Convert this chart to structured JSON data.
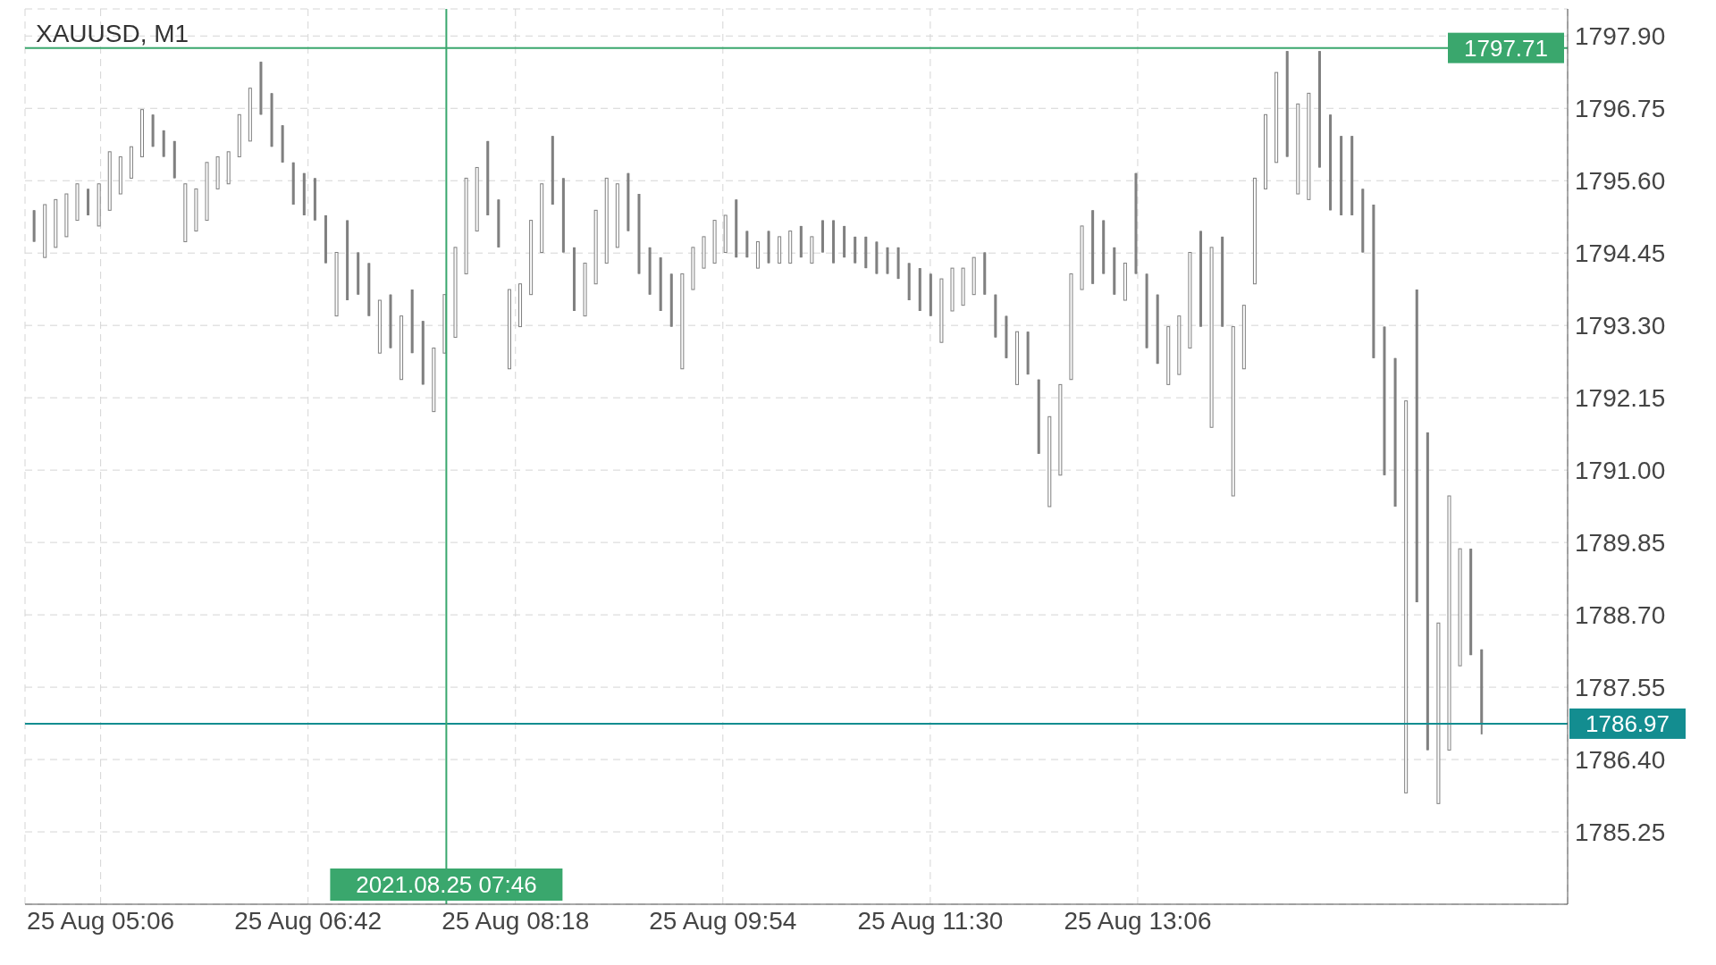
{
  "chart_data": {
    "type": "candlestick",
    "title": "XAUUSD, M1",
    "x": [
      "2021-08-25T04:35",
      "2021-08-25T04:40",
      "2021-08-25T04:45",
      "2021-08-25T04:50",
      "2021-08-25T04:55",
      "2021-08-25T05:00",
      "2021-08-25T05:05",
      "2021-08-25T05:10",
      "2021-08-25T05:15",
      "2021-08-25T05:20",
      "2021-08-25T05:25",
      "2021-08-25T05:30",
      "2021-08-25T05:35",
      "2021-08-25T05:40",
      "2021-08-25T05:45",
      "2021-08-25T05:50",
      "2021-08-25T05:55",
      "2021-08-25T06:00",
      "2021-08-25T06:05",
      "2021-08-25T06:10",
      "2021-08-25T06:15",
      "2021-08-25T06:20",
      "2021-08-25T06:25",
      "2021-08-25T06:30",
      "2021-08-25T06:35",
      "2021-08-25T06:40",
      "2021-08-25T06:45",
      "2021-08-25T06:50",
      "2021-08-25T06:55",
      "2021-08-25T07:00",
      "2021-08-25T07:05",
      "2021-08-25T07:10",
      "2021-08-25T07:15",
      "2021-08-25T07:20",
      "2021-08-25T07:25",
      "2021-08-25T07:30",
      "2021-08-25T07:35",
      "2021-08-25T07:40",
      "2021-08-25T07:45",
      "2021-08-25T07:50",
      "2021-08-25T07:55",
      "2021-08-25T08:00",
      "2021-08-25T08:05",
      "2021-08-25T08:10",
      "2021-08-25T08:15",
      "2021-08-25T08:20",
      "2021-08-25T08:25",
      "2021-08-25T08:30",
      "2021-08-25T08:35",
      "2021-08-25T08:40",
      "2021-08-25T08:45",
      "2021-08-25T08:50",
      "2021-08-25T08:55",
      "2021-08-25T09:00",
      "2021-08-25T09:05",
      "2021-08-25T09:10",
      "2021-08-25T09:15",
      "2021-08-25T09:20",
      "2021-08-25T09:25",
      "2021-08-25T09:30",
      "2021-08-25T09:35",
      "2021-08-25T09:40",
      "2021-08-25T09:45",
      "2021-08-25T09:50",
      "2021-08-25T09:55",
      "2021-08-25T10:00",
      "2021-08-25T10:05",
      "2021-08-25T10:10",
      "2021-08-25T10:15",
      "2021-08-25T10:20",
      "2021-08-25T10:25",
      "2021-08-25T10:30",
      "2021-08-25T10:35",
      "2021-08-25T10:40",
      "2021-08-25T10:45",
      "2021-08-25T10:50",
      "2021-08-25T10:55",
      "2021-08-25T11:00",
      "2021-08-25T11:05",
      "2021-08-25T11:10",
      "2021-08-25T11:15",
      "2021-08-25T11:20",
      "2021-08-25T11:25",
      "2021-08-25T11:30",
      "2021-08-25T11:35",
      "2021-08-25T11:40",
      "2021-08-25T11:45",
      "2021-08-25T11:50",
      "2021-08-25T11:55",
      "2021-08-25T12:00",
      "2021-08-25T12:05",
      "2021-08-25T12:10",
      "2021-08-25T12:15",
      "2021-08-25T12:20",
      "2021-08-25T12:25",
      "2021-08-25T12:30",
      "2021-08-25T12:35",
      "2021-08-25T12:40",
      "2021-08-25T12:45",
      "2021-08-25T12:50",
      "2021-08-25T12:55",
      "2021-08-25T13:00",
      "2021-08-25T13:05",
      "2021-08-25T13:10",
      "2021-08-25T13:15",
      "2021-08-25T13:20",
      "2021-08-25T13:25",
      "2021-08-25T13:30",
      "2021-08-25T13:35",
      "2021-08-25T13:40",
      "2021-08-25T13:45",
      "2021-08-25T13:50",
      "2021-08-25T13:55",
      "2021-08-25T14:00",
      "2021-08-25T14:05",
      "2021-08-25T14:10",
      "2021-08-25T14:15",
      "2021-08-25T14:20",
      "2021-08-25T14:25",
      "2021-08-25T14:30",
      "2021-08-25T14:35",
      "2021-08-25T14:40",
      "2021-08-25T14:45",
      "2021-08-25T14:50",
      "2021-08-25T14:55",
      "2021-08-25T15:00",
      "2021-08-25T15:05",
      "2021-08-25T15:10",
      "2021-08-25T15:15",
      "2021-08-25T15:20",
      "2021-08-25T15:25",
      "2021-08-25T15:30",
      "2021-08-25T15:35",
      "2021-08-25T15:40",
      "2021-08-25T15:45"
    ],
    "ohlc": [
      [
        1795.13,
        1795.13,
        1794.63,
        1794.63
      ],
      [
        1794.38,
        1795.22,
        1794.38,
        1795.22
      ],
      [
        1794.54,
        1795.3,
        1794.54,
        1795.3
      ],
      [
        1794.71,
        1795.39,
        1794.71,
        1795.39
      ],
      [
        1794.97,
        1795.55,
        1794.97,
        1795.55
      ],
      [
        1795.47,
        1795.47,
        1795.05,
        1795.05
      ],
      [
        1794.88,
        1795.55,
        1794.88,
        1795.55
      ],
      [
        1795.13,
        1796.06,
        1795.13,
        1796.06
      ],
      [
        1795.39,
        1795.98,
        1795.39,
        1795.98
      ],
      [
        1795.64,
        1796.14,
        1795.64,
        1796.14
      ],
      [
        1795.98,
        1796.73,
        1795.98,
        1796.73
      ],
      [
        1796.65,
        1796.65,
        1796.14,
        1796.14
      ],
      [
        1796.4,
        1796.4,
        1795.98,
        1795.98
      ],
      [
        1796.23,
        1796.23,
        1795.64,
        1795.64
      ],
      [
        1794.63,
        1795.55,
        1794.63,
        1795.55
      ],
      [
        1794.8,
        1795.47,
        1794.8,
        1795.47
      ],
      [
        1794.97,
        1795.89,
        1794.97,
        1795.89
      ],
      [
        1795.47,
        1795.98,
        1795.47,
        1795.98
      ],
      [
        1795.55,
        1796.06,
        1795.55,
        1796.06
      ],
      [
        1795.98,
        1796.65,
        1795.98,
        1796.65
      ],
      [
        1796.23,
        1797.07,
        1796.23,
        1797.07
      ],
      [
        1797.49,
        1797.49,
        1796.65,
        1796.65
      ],
      [
        1796.99,
        1796.99,
        1796.14,
        1796.14
      ],
      [
        1796.48,
        1796.48,
        1795.89,
        1795.89
      ],
      [
        1795.89,
        1795.89,
        1795.22,
        1795.22
      ],
      [
        1795.72,
        1795.72,
        1795.05,
        1795.05
      ],
      [
        1795.64,
        1795.64,
        1794.97,
        1794.97
      ],
      [
        1795.05,
        1795.05,
        1794.29,
        1794.29
      ],
      [
        1793.45,
        1794.46,
        1793.45,
        1794.46
      ],
      [
        1794.97,
        1794.97,
        1793.7,
        1793.7
      ],
      [
        1794.46,
        1794.46,
        1793.79,
        1793.79
      ],
      [
        1794.29,
        1794.29,
        1793.45,
        1793.45
      ],
      [
        1792.86,
        1793.7,
        1792.86,
        1793.7
      ],
      [
        1793.79,
        1793.79,
        1792.94,
        1792.94
      ],
      [
        1792.44,
        1793.45,
        1792.44,
        1793.45
      ],
      [
        1793.87,
        1793.87,
        1792.86,
        1792.86
      ],
      [
        1793.37,
        1793.37,
        1792.36,
        1792.36
      ],
      [
        1791.93,
        1792.94,
        1791.93,
        1792.94
      ],
      [
        1792.86,
        1793.79,
        1792.86,
        1793.79
      ],
      [
        1793.11,
        1794.54,
        1793.11,
        1794.54
      ],
      [
        1794.12,
        1795.64,
        1794.12,
        1795.64
      ],
      [
        1794.8,
        1795.81,
        1794.8,
        1795.81
      ],
      [
        1796.23,
        1796.23,
        1795.05,
        1795.05
      ],
      [
        1795.3,
        1795.3,
        1794.54,
        1794.54
      ],
      [
        1792.61,
        1793.87,
        1792.61,
        1793.87
      ],
      [
        1793.28,
        1793.96,
        1793.28,
        1793.96
      ],
      [
        1793.79,
        1794.97,
        1793.79,
        1794.97
      ],
      [
        1794.46,
        1795.55,
        1794.46,
        1795.55
      ],
      [
        1796.31,
        1796.31,
        1795.22,
        1795.22
      ],
      [
        1795.64,
        1795.64,
        1794.46,
        1794.46
      ],
      [
        1794.54,
        1794.54,
        1793.53,
        1793.53
      ],
      [
        1793.45,
        1794.29,
        1793.45,
        1794.29
      ],
      [
        1793.96,
        1795.13,
        1793.96,
        1795.13
      ],
      [
        1794.29,
        1795.64,
        1794.29,
        1795.64
      ],
      [
        1794.54,
        1795.55,
        1794.54,
        1795.55
      ],
      [
        1795.72,
        1795.72,
        1794.8,
        1794.8
      ],
      [
        1795.39,
        1795.39,
        1794.12,
        1794.12
      ],
      [
        1794.54,
        1794.54,
        1793.79,
        1793.79
      ],
      [
        1794.38,
        1794.38,
        1793.53,
        1793.53
      ],
      [
        1794.12,
        1794.12,
        1793.28,
        1793.28
      ],
      [
        1792.61,
        1794.12,
        1792.61,
        1794.12
      ],
      [
        1793.87,
        1794.54,
        1793.87,
        1794.54
      ],
      [
        1794.21,
        1794.71,
        1794.21,
        1794.71
      ],
      [
        1794.29,
        1794.97,
        1794.29,
        1794.97
      ],
      [
        1794.46,
        1795.05,
        1794.46,
        1795.05
      ],
      [
        1795.3,
        1795.3,
        1794.38,
        1794.38
      ],
      [
        1794.8,
        1794.8,
        1794.38,
        1794.38
      ],
      [
        1794.21,
        1794.63,
        1794.21,
        1794.63
      ],
      [
        1794.8,
        1794.8,
        1794.29,
        1794.29
      ],
      [
        1794.29,
        1794.71,
        1794.29,
        1794.71
      ],
      [
        1794.29,
        1794.8,
        1794.29,
        1794.8
      ],
      [
        1794.88,
        1794.88,
        1794.38,
        1794.38
      ],
      [
        1794.29,
        1794.71,
        1794.29,
        1794.71
      ],
      [
        1794.97,
        1794.97,
        1794.46,
        1794.46
      ],
      [
        1794.97,
        1794.97,
        1794.29,
        1794.29
      ],
      [
        1794.88,
        1794.88,
        1794.38,
        1794.38
      ],
      [
        1794.71,
        1794.71,
        1794.29,
        1794.29
      ],
      [
        1794.71,
        1794.71,
        1794.21,
        1794.21
      ],
      [
        1794.63,
        1794.63,
        1794.12,
        1794.12
      ],
      [
        1794.54,
        1794.54,
        1794.12,
        1794.12
      ],
      [
        1794.54,
        1794.54,
        1794.04,
        1794.04
      ],
      [
        1794.29,
        1794.29,
        1793.7,
        1793.7
      ],
      [
        1794.21,
        1794.21,
        1793.53,
        1793.53
      ],
      [
        1794.12,
        1794.12,
        1793.45,
        1793.45
      ],
      [
        1793.03,
        1794.04,
        1793.03,
        1794.04
      ],
      [
        1793.53,
        1794.21,
        1793.53,
        1794.21
      ],
      [
        1793.62,
        1794.21,
        1793.62,
        1794.21
      ],
      [
        1793.79,
        1794.38,
        1793.79,
        1794.38
      ],
      [
        1794.46,
        1794.46,
        1793.79,
        1793.79
      ],
      [
        1793.79,
        1793.79,
        1793.11,
        1793.11
      ],
      [
        1793.45,
        1793.45,
        1792.78,
        1792.78
      ],
      [
        1792.36,
        1793.2,
        1792.36,
        1793.2
      ],
      [
        1793.2,
        1793.2,
        1792.52,
        1792.52
      ],
      [
        1792.44,
        1792.44,
        1791.26,
        1791.26
      ],
      [
        1790.42,
        1791.85,
        1790.42,
        1791.85
      ],
      [
        1790.92,
        1792.36,
        1790.92,
        1792.36
      ],
      [
        1792.44,
        1794.12,
        1792.44,
        1794.12
      ],
      [
        1793.87,
        1794.88,
        1793.87,
        1794.88
      ],
      [
        1795.13,
        1795.13,
        1793.96,
        1793.96
      ],
      [
        1794.97,
        1794.97,
        1794.12,
        1794.12
      ],
      [
        1794.54,
        1794.54,
        1793.79,
        1793.79
      ],
      [
        1793.7,
        1794.29,
        1793.7,
        1794.29
      ],
      [
        1795.72,
        1795.72,
        1794.12,
        1794.12
      ],
      [
        1794.12,
        1794.12,
        1792.94,
        1792.94
      ],
      [
        1793.79,
        1793.79,
        1792.69,
        1792.69
      ],
      [
        1792.36,
        1793.28,
        1792.36,
        1793.28
      ],
      [
        1792.52,
        1793.45,
        1792.52,
        1793.45
      ],
      [
        1792.94,
        1794.46,
        1792.94,
        1794.46
      ],
      [
        1794.8,
        1794.8,
        1793.28,
        1793.28
      ],
      [
        1791.68,
        1794.54,
        1791.68,
        1794.54
      ],
      [
        1794.71,
        1794.71,
        1793.28,
        1793.28
      ],
      [
        1790.59,
        1793.28,
        1790.59,
        1793.28
      ],
      [
        1792.61,
        1793.62,
        1792.61,
        1793.62
      ],
      [
        1793.96,
        1795.64,
        1793.96,
        1795.64
      ],
      [
        1795.47,
        1796.65,
        1795.47,
        1796.65
      ],
      [
        1795.89,
        1797.32,
        1795.89,
        1797.32
      ],
      [
        1797.66,
        1797.66,
        1795.98,
        1795.98
      ],
      [
        1795.39,
        1796.82,
        1795.39,
        1796.82
      ],
      [
        1795.3,
        1796.99,
        1795.3,
        1796.99
      ],
      [
        1797.66,
        1797.66,
        1795.81,
        1795.81
      ],
      [
        1796.65,
        1796.65,
        1795.13,
        1795.13
      ],
      [
        1796.31,
        1796.31,
        1795.05,
        1795.05
      ],
      [
        1796.31,
        1796.31,
        1795.05,
        1795.05
      ],
      [
        1795.47,
        1795.47,
        1794.46,
        1794.46
      ],
      [
        1795.22,
        1795.22,
        1792.78,
        1792.78
      ],
      [
        1793.28,
        1793.28,
        1790.92,
        1790.92
      ],
      [
        1792.78,
        1792.78,
        1790.42,
        1790.42
      ],
      [
        1785.87,
        1792.1,
        1785.87,
        1792.1
      ],
      [
        1793.87,
        1793.87,
        1788.9,
        1788.9
      ],
      [
        1791.6,
        1791.6,
        1786.55,
        1786.55
      ],
      [
        1785.7,
        1788.57,
        1785.7,
        1788.57
      ],
      [
        1786.55,
        1790.59,
        1786.55,
        1790.59
      ],
      [
        1787.89,
        1789.75,
        1787.89,
        1789.75
      ],
      [
        1789.75,
        1789.75,
        1788.06,
        1788.06
      ],
      [
        1788.15,
        1788.15,
        1786.8,
        1786.97
      ]
    ],
    "color": "#808080",
    "xlim": [
      "2021-08-25T04:31",
      "2021-08-25T16:25"
    ],
    "xticks": [
      {
        "value": "2021-08-25T05:06",
        "label": "25 Aug 05:06"
      },
      {
        "value": "2021-08-25T06:42",
        "label": "25 Aug 06:42"
      },
      {
        "value": "2021-08-25T08:18",
        "label": "25 Aug 08:18"
      },
      {
        "value": "2021-08-25T09:54",
        "label": "25 Aug 09:54"
      },
      {
        "value": "2021-08-25T11:30",
        "label": "25 Aug 11:30"
      },
      {
        "value": "2021-08-25T13:06",
        "label": "25 Aug 13:06"
      }
    ],
    "ylim": [
      1784.1,
      1798.33
    ],
    "yticks": [
      1785.25,
      {
        "value": 1786.4,
        "label": "1786.40"
      },
      {
        "value": 1787.55,
        "label": "1787.55"
      },
      {
        "value": 1788.7,
        "label": "1788.70"
      },
      1789.85,
      {
        "value": 1791,
        "label": "1791.00"
      },
      1792.15,
      {
        "value": 1793.3,
        "label": "1793.30"
      },
      1794.45,
      {
        "value": 1795.6,
        "label": "1795.60"
      },
      1796.75,
      {
        "value": 1797.9,
        "label": "1797.90"
      }
    ],
    "grid": true,
    "ref_lines": [
      {
        "axis": "y",
        "value": 1797.71,
        "label": "1797.71",
        "color": "#3aa76d"
      },
      {
        "axis": "y",
        "value": 1786.97,
        "label": "1786.97",
        "color": "#138d90"
      },
      {
        "axis": "x",
        "value": "2021-08-25T07:46",
        "label": "2021.08.25 07:46",
        "color": "#3aa76d"
      }
    ]
  }
}
